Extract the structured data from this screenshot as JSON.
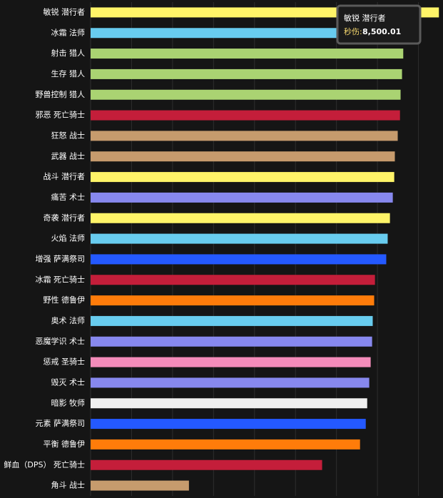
{
  "chart_data": {
    "type": "bar",
    "categories": [
      "敏锐 潜行者",
      "冰霜 法师",
      "射击 猎人",
      "生存 猎人",
      "野兽控制 猎人",
      "邪恶 死亡骑士",
      "狂怒 战士",
      "武器 战士",
      "战斗 潜行者",
      "痛苦 术士",
      "奇袭 潜行者",
      "火焰 法师",
      "增强 萨满祭司",
      "冰霜 死亡骑士",
      "野性 德鲁伊",
      "奥术 法师",
      "恶魔学识 术士",
      "惩戒 圣骑士",
      "毁灭 术士",
      "暗影 牧师",
      "元素 萨满祭司",
      "平衡 德鲁伊",
      "鲜血（DPS） 死亡骑士",
      "角斗 战士"
    ],
    "values": [
      8500.01,
      7950,
      7630,
      7600,
      7565,
      7550,
      7495,
      7425,
      7410,
      7375,
      7305,
      7250,
      7215,
      6940,
      6920,
      6885,
      6870,
      6835,
      6800,
      6750,
      6715,
      6575,
      5650,
      2400
    ],
    "colors": [
      "#fff468",
      "#68ccef",
      "#aad372",
      "#aad372",
      "#aad372",
      "#c41e3a",
      "#c69b6d",
      "#c69b6d",
      "#fff468",
      "#8788ee",
      "#fff468",
      "#68ccef",
      "#2459ff",
      "#c41e3a",
      "#ff7c0a",
      "#68ccef",
      "#8788ee",
      "#f48cba",
      "#8788ee",
      "#f0f0f0",
      "#2459ff",
      "#ff7c0a",
      "#c41e3a",
      "#c69b6d"
    ],
    "xlim": [
      0,
      8600
    ],
    "xticks": [
      0,
      1000,
      2000,
      3000,
      4000,
      5000,
      6000,
      7000,
      8000
    ],
    "grid": true,
    "tooltip": {
      "title": "敏锐 潜行者",
      "label": "秒伤:",
      "value": "8,500.01"
    }
  }
}
